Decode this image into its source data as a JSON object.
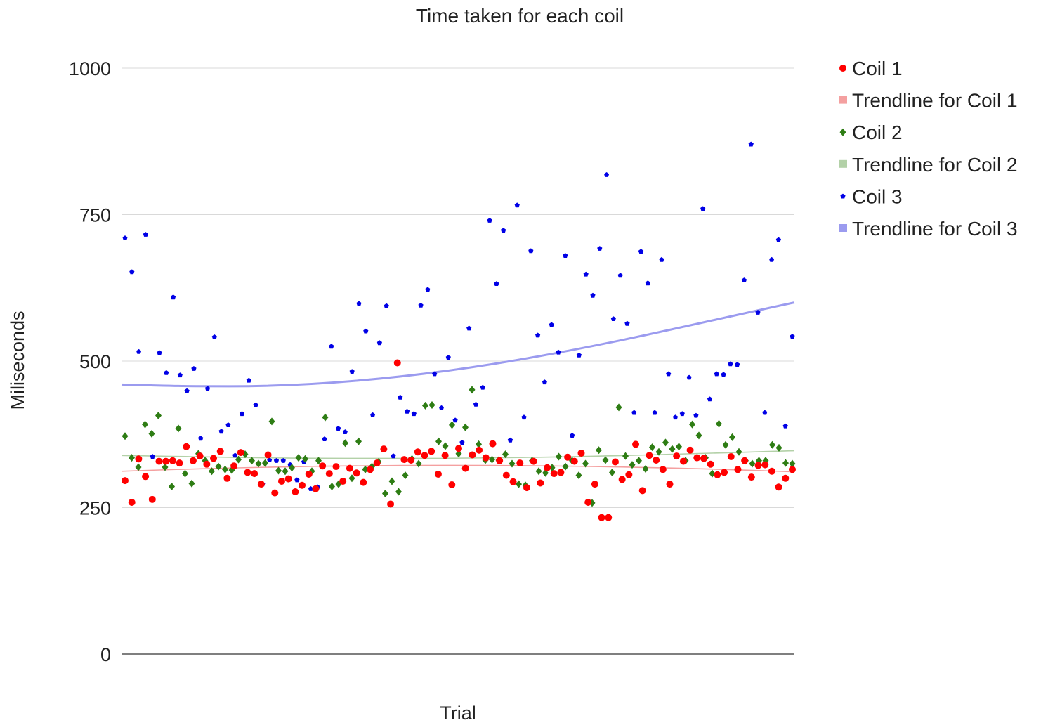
{
  "chart_data": {
    "type": "scatter",
    "title": "Time taken for each coil",
    "xlabel": "Trial",
    "ylabel": "Miliseconds",
    "ylim": [
      0,
      1000
    ],
    "yticks": [
      "0",
      "250",
      "500",
      "750",
      "1000"
    ],
    "grid": true,
    "legend_position": "right",
    "series": [
      {
        "name": "Coil 1",
        "color": "#ff0000",
        "marker": "circle",
        "values": [
          296,
          259,
          333,
          303,
          264,
          329,
          329,
          330,
          326,
          354,
          330,
          338,
          324,
          334,
          346,
          300,
          321,
          344,
          310,
          308,
          290,
          340,
          275,
          295,
          299,
          277,
          288,
          307,
          282,
          321,
          308,
          320,
          295,
          317,
          309,
          293,
          315,
          326,
          350,
          256,
          497,
          332,
          331,
          345,
          339,
          346,
          307,
          339,
          289,
          351,
          317,
          340,
          348,
          335,
          359,
          330,
          305,
          294,
          326,
          284,
          329,
          292,
          318,
          308,
          310,
          336,
          329,
          343,
          259,
          290,
          233,
          233,
          328,
          298,
          306,
          358,
          279,
          339,
          331,
          315,
          290,
          338,
          329,
          348,
          335,
          334,
          324,
          306,
          310,
          337,
          315,
          330,
          302,
          322,
          323,
          312,
          285,
          300,
          315
        ]
      },
      {
        "name": "Trendline for Coil 1",
        "color": "#f4a0a0",
        "marker": "line",
        "trend_start": 312,
        "trend_peak": 322,
        "trend_end": 311
      },
      {
        "name": "Coil 2",
        "color": "#2e7d14",
        "marker": "diamond",
        "values": [
          372,
          335,
          319,
          392,
          376,
          407,
          319,
          286,
          385,
          308,
          291,
          342,
          330,
          312,
          320,
          315,
          314,
          332,
          341,
          330,
          325,
          326,
          397,
          313,
          312,
          318,
          335,
          333,
          312,
          330,
          404,
          286,
          290,
          360,
          300,
          363,
          315,
          320,
          328,
          274,
          295,
          277,
          305,
          333,
          325,
          424,
          425,
          363,
          355,
          391,
          342,
          387,
          451,
          358,
          331,
          332,
          331,
          341,
          325,
          290,
          288,
          330,
          312,
          309,
          318,
          337,
          320,
          330,
          305,
          325,
          258,
          348,
          331,
          310,
          421,
          338,
          323,
          330,
          316,
          353,
          345,
          361,
          350,
          354,
          330,
          392,
          373,
          335,
          308,
          393,
          357,
          370,
          345,
          330,
          325,
          330,
          330,
          357,
          352,
          326,
          325
        ]
      },
      {
        "name": "Trendline for Coil 2",
        "color": "#b3d1a8",
        "marker": "line",
        "trend_start": 339,
        "trend_min": 334,
        "trend_end": 347
      },
      {
        "name": "Coil 3",
        "color": "#0000e6",
        "marker": "pentagon",
        "values": [
          710,
          652,
          516,
          716,
          337,
          514,
          480,
          609,
          476,
          449,
          487,
          368,
          453,
          541,
          380,
          391,
          339,
          410,
          467,
          425,
          290,
          331,
          330,
          330,
          323,
          297,
          328,
          282,
          285,
          367,
          525,
          385,
          379,
          482,
          598,
          551,
          408,
          531,
          594,
          338,
          438,
          414,
          410,
          595,
          622,
          478,
          420,
          506,
          399,
          361,
          556,
          426,
          455,
          740,
          632,
          723,
          365,
          766,
          404,
          688,
          544,
          464,
          562,
          515,
          680,
          373,
          510,
          648,
          612,
          692,
          818,
          572,
          646,
          564,
          412,
          687,
          633,
          412,
          673,
          478,
          404,
          410,
          472,
          407,
          760,
          435,
          478,
          477,
          495,
          494,
          638,
          870,
          583,
          412,
          673,
          707,
          389,
          542
        ]
      },
      {
        "name": "Trendline for Coil 3",
        "color": "#9b9bef",
        "marker": "line",
        "trend_start": 460,
        "trend_min": 457,
        "trend_end": 600
      }
    ]
  }
}
